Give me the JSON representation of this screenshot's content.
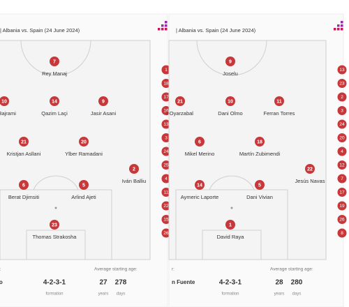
{
  "panels": [
    {
      "title": "| Albania vs. Spain (24 June 2024)",
      "players": [
        {
          "number": 7,
          "name": "Rey Manaj"
        },
        {
          "number": 10,
          "name": "m Bajrami"
        },
        {
          "number": 14,
          "name": "Qazim Laçi"
        },
        {
          "number": 9,
          "name": "Jasir Asani"
        },
        {
          "number": 21,
          "name": "Kristjan Asllani"
        },
        {
          "number": 20,
          "name": "Ylber Ramadani"
        },
        {
          "number": 2,
          "name": "Iván Balliu"
        },
        {
          "number": 6,
          "name": "Berat Djimsiti"
        },
        {
          "number": 5,
          "name": "Arlind Ajeti"
        },
        {
          "number": 23,
          "name": "Thomas Strakosha"
        }
      ],
      "subs": [
        1,
        18,
        17,
        16,
        13,
        3,
        24,
        25,
        4,
        11,
        22,
        15,
        26
      ],
      "manager_label": "er:",
      "manager": "ho",
      "formation": "4-2-3-1",
      "formation_label": "formation",
      "age_label": "Average starting age:",
      "age_years": 27,
      "years_label": "years",
      "age_days": 278,
      "days_label": "days"
    },
    {
      "title": "| Albania vs. Spain (24 June 2024)",
      "players": [
        {
          "number": 9,
          "name": "Joselu"
        },
        {
          "number": 21,
          "name": "l Oyarzabal"
        },
        {
          "number": 10,
          "name": "Dani Olmo"
        },
        {
          "number": 11,
          "name": "Ferran Torres"
        },
        {
          "number": 6,
          "name": "Mikel Merino"
        },
        {
          "number": 18,
          "name": "Martín Zubimendi"
        },
        {
          "number": 22,
          "name": "Jesús Navas"
        },
        {
          "number": 14,
          "name": "Aymeric Laporte"
        },
        {
          "number": 5,
          "name": "Dani Vivian"
        },
        {
          "number": 1,
          "name": "David Raya"
        }
      ],
      "subs": [
        13,
        23,
        2,
        3,
        24,
        20,
        4,
        12,
        7,
        17,
        19,
        26,
        8
      ],
      "manager_label": "r:",
      "manager": "n Fuente",
      "formation": "4-2-3-1",
      "formation_label": "formation",
      "age_label": "Average starting age:",
      "age_years": 28,
      "years_label": "years",
      "age_days": 280,
      "days_label": "days"
    }
  ]
}
